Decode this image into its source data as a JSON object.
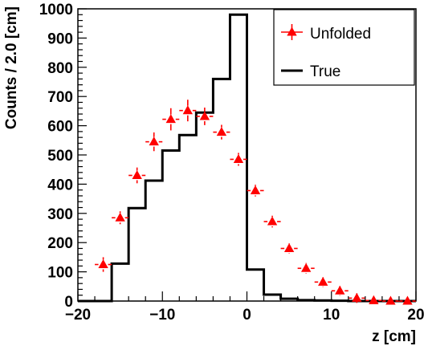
{
  "chart_data": {
    "type": "histogram",
    "title": "",
    "xlabel": "z [cm]",
    "ylabel": "Counts / 2.0 [cm]",
    "xlim": [
      -20,
      20
    ],
    "ylim": [
      0,
      1000
    ],
    "xticks": [
      -20,
      -10,
      0,
      10,
      20
    ],
    "yticks": [
      0,
      100,
      200,
      300,
      400,
      500,
      600,
      700,
      800,
      900,
      1000
    ],
    "grid": false,
    "legend_position": "top-right",
    "bin_width": 2.0,
    "series": [
      {
        "name": "Unfolded",
        "style": "markers-with-errors",
        "marker": "triangle-up",
        "color": "#ff0000",
        "x": [
          -17,
          -15,
          -13,
          -11,
          -9,
          -7,
          -5,
          -3,
          -1,
          1,
          3,
          5,
          7,
          9,
          11,
          13,
          15,
          17,
          19
        ],
        "y": [
          125,
          285,
          430,
          545,
          622,
          652,
          632,
          578,
          485,
          378,
          272,
          180,
          112,
          65,
          35,
          10,
          2,
          0,
          0
        ],
        "err": [
          25,
          22,
          27,
          32,
          38,
          37,
          30,
          25,
          22,
          20,
          20,
          18,
          18,
          15,
          15,
          10,
          0,
          0,
          0
        ]
      },
      {
        "name": "True",
        "style": "step",
        "color": "#000000",
        "bin_edges": [
          -20,
          -18,
          -16,
          -14,
          -12,
          -10,
          -8,
          -6,
          -4,
          -2,
          0,
          2,
          4,
          6,
          8,
          10,
          12,
          14,
          16,
          18,
          20
        ],
        "values": [
          0,
          0,
          128,
          318,
          412,
          515,
          568,
          645,
          760,
          980,
          108,
          22,
          8,
          3,
          2,
          1,
          0,
          0,
          0,
          0
        ]
      }
    ]
  }
}
